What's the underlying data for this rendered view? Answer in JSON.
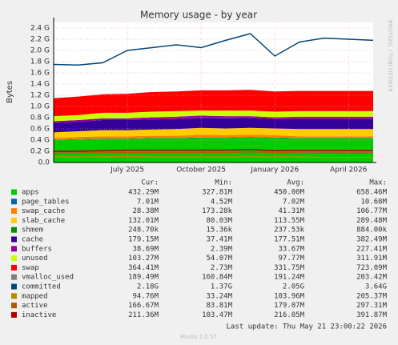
{
  "chart_data": {
    "type": "area",
    "title": "Memory usage - by year",
    "ylabel": "Bytes",
    "side_note": "RRDTOOL / TOBI OETIKER",
    "footer": "Last update: Thu May 21 23:00:22 2026",
    "credit": "Munin 2.0.57",
    "stat_headers": [
      "Cur:",
      "Min:",
      "Avg:",
      "Max:"
    ],
    "x": [
      "2025-04",
      "2025-05",
      "2025-06",
      "2025-07",
      "2025-08",
      "2025-09",
      "2025-10",
      "2025-11",
      "2025-12",
      "2026-01",
      "2026-02",
      "2026-03",
      "2026-04",
      "2026-05"
    ],
    "xlim": [
      "2025-04",
      "2026-05"
    ],
    "xticks": [
      {
        "value": "2025-07",
        "label": "July 2025"
      },
      {
        "value": "2025-10",
        "label": "October 2025"
      },
      {
        "value": "2026-01",
        "label": "January 2026"
      },
      {
        "value": "2026-04",
        "label": "April 2026"
      }
    ],
    "ylim": [
      0,
      2.5
    ],
    "yticks": [
      {
        "value": 0,
        "label": "0.0"
      },
      {
        "value": 0.2,
        "label": "0.2 G"
      },
      {
        "value": 0.4,
        "label": "0.4 G"
      },
      {
        "value": 0.6,
        "label": "0.6 G"
      },
      {
        "value": 0.8,
        "label": "0.8 G"
      },
      {
        "value": 1,
        "label": "1.0 G"
      },
      {
        "value": 1.2,
        "label": "1.2 G"
      },
      {
        "value": 1.4,
        "label": "1.4 G"
      },
      {
        "value": 1.6,
        "label": "1.6 G"
      },
      {
        "value": 1.8,
        "label": "1.8 G"
      },
      {
        "value": 2,
        "label": "2.0 G"
      },
      {
        "value": 2.2,
        "label": "2.2 G"
      },
      {
        "value": 2.4,
        "label": "2.4 G"
      }
    ],
    "grid": true,
    "series": [
      {
        "name": "apps",
        "style": "area",
        "color": "#00cc00",
        "stats": [
          "432.29M",
          "327.81M",
          "450.00M",
          "658.46M"
        ],
        "values": [
          0.4,
          0.41,
          0.42,
          0.42,
          0.43,
          0.43,
          0.44,
          0.44,
          0.45,
          0.44,
          0.43,
          0.43,
          0.43,
          0.43
        ]
      },
      {
        "name": "page_tables",
        "style": "area",
        "color": "#0066b3",
        "stats": [
          "7.01M",
          "4.52M",
          "7.02M",
          "10.68M"
        ],
        "values": [
          0.007,
          0.007,
          0.007,
          0.007,
          0.007,
          0.007,
          0.007,
          0.007,
          0.007,
          0.007,
          0.007,
          0.007,
          0.007,
          0.007
        ]
      },
      {
        "name": "swap_cache",
        "style": "area",
        "color": "#ff8000",
        "stats": [
          "28.38M",
          "173.28k",
          "41.31M",
          "106.77M"
        ],
        "values": [
          0.03,
          0.04,
          0.04,
          0.04,
          0.04,
          0.04,
          0.05,
          0.04,
          0.04,
          0.04,
          0.03,
          0.03,
          0.03,
          0.03
        ]
      },
      {
        "name": "slab_cache",
        "style": "area",
        "color": "#ffcc00",
        "stats": [
          "132.01M",
          "80.03M",
          "113.55M",
          "289.48M"
        ],
        "values": [
          0.1,
          0.1,
          0.11,
          0.11,
          0.11,
          0.12,
          0.12,
          0.12,
          0.12,
          0.12,
          0.13,
          0.13,
          0.13,
          0.13
        ]
      },
      {
        "name": "shmem",
        "style": "area",
        "color": "#008f00",
        "stats": [
          "248.70k",
          "15.36k",
          "237.53k",
          "884.00k"
        ],
        "values": [
          0.0002,
          0.0002,
          0.0002,
          0.0002,
          0.0002,
          0.0002,
          0.0002,
          0.0002,
          0.0002,
          0.0002,
          0.0002,
          0.0002,
          0.0002,
          0.0002
        ]
      },
      {
        "name": "cache",
        "style": "area",
        "color": "#330099",
        "stats": [
          "179.15M",
          "37.41M",
          "177.51M",
          "382.49M"
        ],
        "values": [
          0.17,
          0.17,
          0.18,
          0.18,
          0.18,
          0.18,
          0.18,
          0.18,
          0.18,
          0.17,
          0.18,
          0.18,
          0.18,
          0.18
        ]
      },
      {
        "name": "buffers",
        "style": "area",
        "color": "#990099",
        "stats": [
          "38.69M",
          "2.39M",
          "33.67M",
          "227.41M"
        ],
        "values": [
          0.03,
          0.03,
          0.03,
          0.03,
          0.04,
          0.04,
          0.04,
          0.04,
          0.03,
          0.03,
          0.04,
          0.04,
          0.04,
          0.04
        ]
      },
      {
        "name": "unused",
        "style": "area",
        "color": "#ccff00",
        "stats": [
          "103.27M",
          "54.07M",
          "97.77M",
          "311.91M"
        ],
        "values": [
          0.09,
          0.09,
          0.1,
          0.1,
          0.1,
          0.1,
          0.09,
          0.1,
          0.1,
          0.1,
          0.1,
          0.1,
          0.1,
          0.1
        ]
      },
      {
        "name": "swap",
        "style": "area",
        "color": "#ff0000",
        "stats": [
          "364.41M",
          "2.73M",
          "331.75M",
          "723.09M"
        ],
        "values": [
          0.32,
          0.33,
          0.33,
          0.34,
          0.35,
          0.35,
          0.36,
          0.36,
          0.37,
          0.36,
          0.36,
          0.36,
          0.36,
          0.36
        ]
      },
      {
        "name": "vmalloc_used",
        "style": "line",
        "color": "#808080",
        "stats": [
          "189.49M",
          "160.84M",
          "191.24M",
          "203.42M"
        ],
        "values": [
          0.18,
          0.18,
          0.19,
          0.19,
          0.19,
          0.19,
          0.19,
          0.19,
          0.19,
          0.19,
          0.19,
          0.19,
          0.19,
          0.19
        ]
      },
      {
        "name": "committed",
        "style": "line",
        "color": "#00487d",
        "stats": [
          "2.18G",
          "1.37G",
          "2.05G",
          "3.64G"
        ],
        "values": [
          1.75,
          1.74,
          1.78,
          2.0,
          2.05,
          2.1,
          2.05,
          2.18,
          2.3,
          1.9,
          2.15,
          2.22,
          2.2,
          2.18
        ]
      },
      {
        "name": "mapped",
        "style": "line",
        "color": "#b38f00",
        "stats": [
          "94.76M",
          "33.24M",
          "103.96M",
          "205.37M"
        ],
        "values": [
          0.1,
          0.1,
          0.1,
          0.11,
          0.1,
          0.1,
          0.1,
          0.1,
          0.1,
          0.1,
          0.1,
          0.09,
          0.09,
          0.09
        ]
      },
      {
        "name": "active",
        "style": "line",
        "color": "#b35a00",
        "stats": [
          "166.67M",
          "83.81M",
          "179.07M",
          "297.31M"
        ],
        "values": [
          0.17,
          0.17,
          0.18,
          0.18,
          0.18,
          0.18,
          0.18,
          0.18,
          0.19,
          0.18,
          0.17,
          0.17,
          0.17,
          0.17
        ]
      },
      {
        "name": "inactive",
        "style": "line",
        "color": "#b30000",
        "stats": [
          "211.36M",
          "103.47M",
          "216.05M",
          "391.87M"
        ],
        "values": [
          0.2,
          0.2,
          0.21,
          0.22,
          0.22,
          0.22,
          0.22,
          0.22,
          0.23,
          0.21,
          0.21,
          0.21,
          0.21,
          0.21
        ]
      }
    ]
  }
}
